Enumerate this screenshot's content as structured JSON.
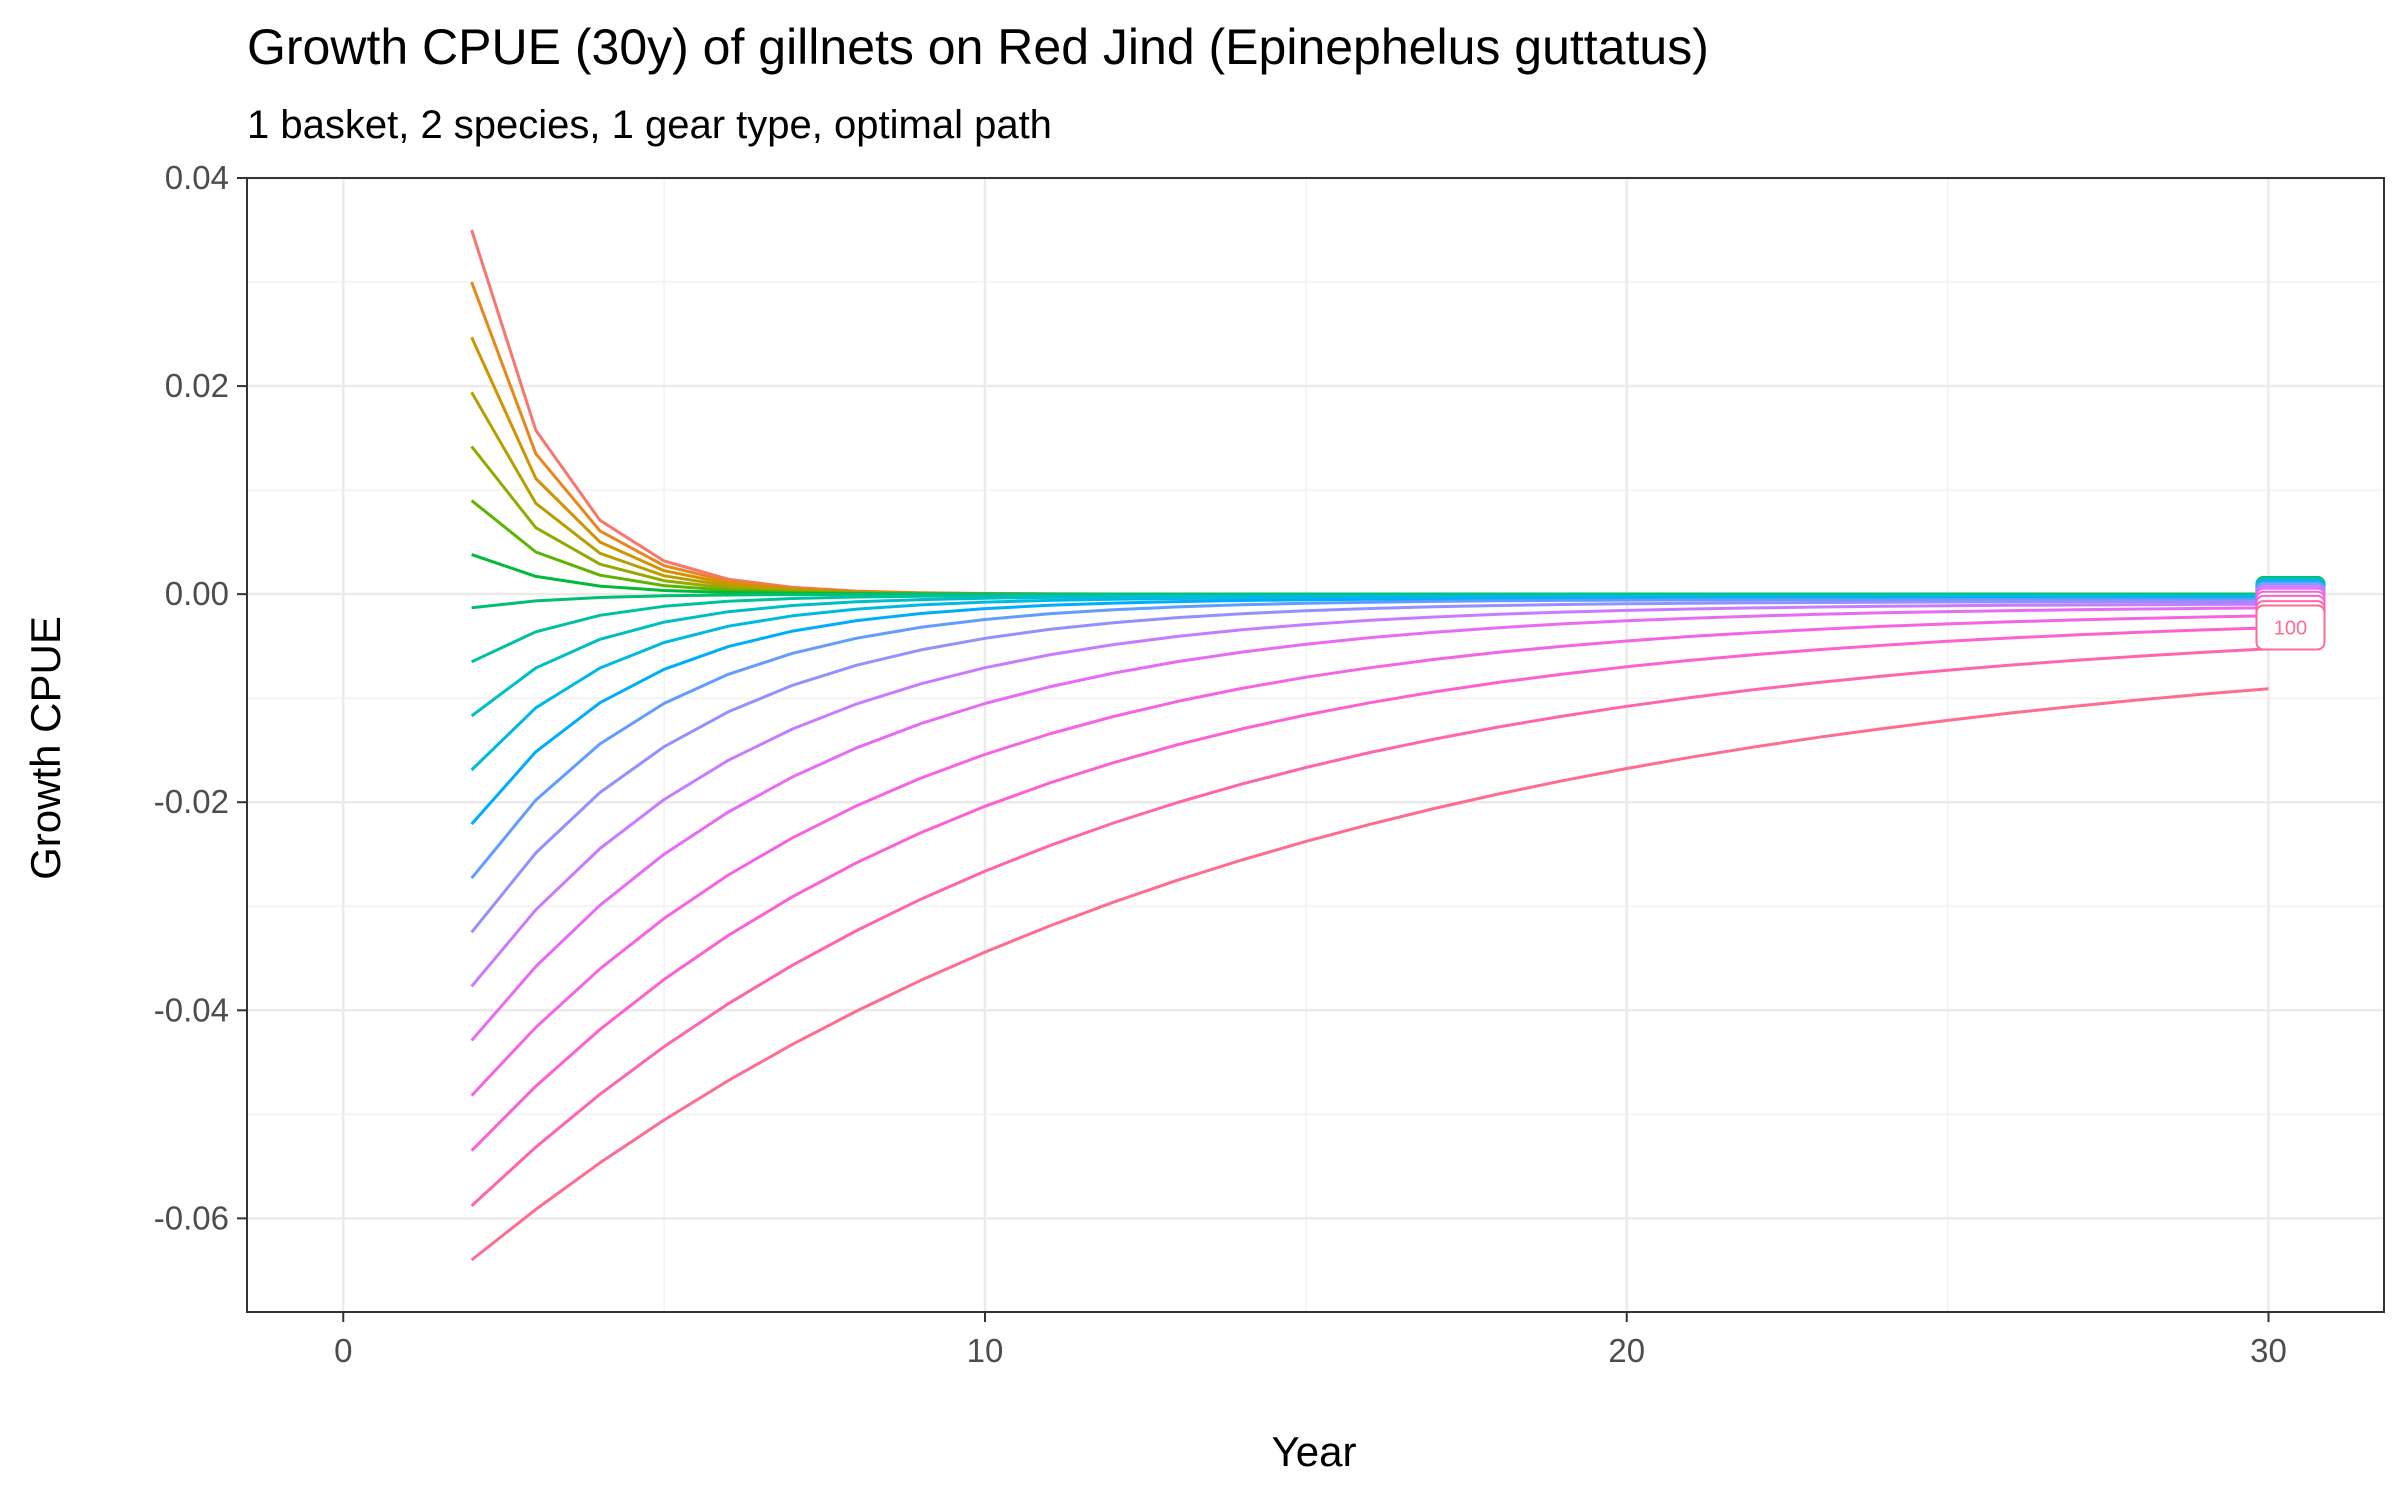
{
  "chart_data": {
    "type": "line",
    "title": "Growth CPUE (30y) of gillnets on Red Jind (Epinephelus guttatus)",
    "subtitle": "1 basket, 2 species, 1 gear type, optimal path",
    "xlabel": "Year",
    "ylabel": "Growth CPUE",
    "xlim": [
      -1.5,
      31.8
    ],
    "ylim": [
      -0.069,
      0.04
    ],
    "x_ticks": [
      0,
      10,
      20,
      30
    ],
    "y_ticks": [
      0.04,
      0.02,
      0.0,
      -0.02,
      -0.04,
      -0.06
    ],
    "x_tick_labels": [
      "0",
      "10",
      "20",
      "30"
    ],
    "y_tick_labels": [
      "0.04",
      "0.02",
      "0.00",
      "-0.02",
      "-0.04",
      "-0.06"
    ],
    "grid": true,
    "legend": "none",
    "x": [
      2,
      3,
      4,
      5,
      6,
      7,
      8,
      9,
      10,
      11,
      12,
      13,
      14,
      15,
      16,
      17,
      18,
      19,
      20,
      21,
      22,
      23,
      24,
      25,
      26,
      27,
      28,
      29,
      30
    ],
    "series": [
      {
        "color": "#F8766D",
        "start": 0.035,
        "end": 0.0,
        "decay": 0.55
      },
      {
        "color": "#E7861B",
        "start": 0.03,
        "end": 0.0,
        "decay": 0.55
      },
      {
        "color": "#D39200",
        "start": 0.0247,
        "end": 0.0,
        "decay": 0.55
      },
      {
        "color": "#B79F00",
        "start": 0.0194,
        "end": 0.0,
        "decay": 0.55
      },
      {
        "color": "#93AA00",
        "start": 0.0142,
        "end": 0.0,
        "decay": 0.55
      },
      {
        "color": "#5EB300",
        "start": 0.009,
        "end": 0.0,
        "decay": 0.55
      },
      {
        "color": "#00BA38",
        "start": 0.0038,
        "end": 0.0,
        "decay": 0.55
      },
      {
        "color": "#00BF74",
        "start": -0.0013,
        "end": 0.0,
        "decay": 0.5
      },
      {
        "color": "#00C19F",
        "start": -0.0065,
        "end": -0.0001,
        "decay": 0.45
      },
      {
        "color": "#00BFC4",
        "start": -0.0117,
        "end": -0.0002,
        "decay": 0.4
      },
      {
        "color": "#00B9E3",
        "start": -0.0169,
        "end": -0.0003,
        "decay": 0.36
      },
      {
        "color": "#00ADFA",
        "start": -0.0221,
        "end": -0.0004,
        "decay": 0.32
      },
      {
        "color": "#619CFF",
        "start": -0.0273,
        "end": -0.0005,
        "decay": 0.28
      },
      {
        "color": "#9590FF",
        "start": -0.0325,
        "end": -0.0007,
        "decay": 0.24
      },
      {
        "color": "#C77CFF",
        "start": -0.0377,
        "end": -0.0009,
        "decay": 0.2
      },
      {
        "color": "#E76BF3",
        "start": -0.0429,
        "end": -0.0011,
        "decay": 0.17
      },
      {
        "color": "#F564E3",
        "start": -0.0482,
        "end": -0.0014,
        "decay": 0.14
      },
      {
        "color": "#FD61D1",
        "start": -0.0535,
        "end": -0.0018,
        "decay": 0.12
      },
      {
        "color": "#FF65AE",
        "start": -0.0588,
        "end": -0.0023,
        "decay": 0.1
      },
      {
        "color": "#FF6C91",
        "start": -0.064,
        "end": -0.0032,
        "decay": 0.08
      }
    ],
    "end_labels": [
      {
        "text": "100",
        "color": "#FF6C91"
      }
    ]
  }
}
